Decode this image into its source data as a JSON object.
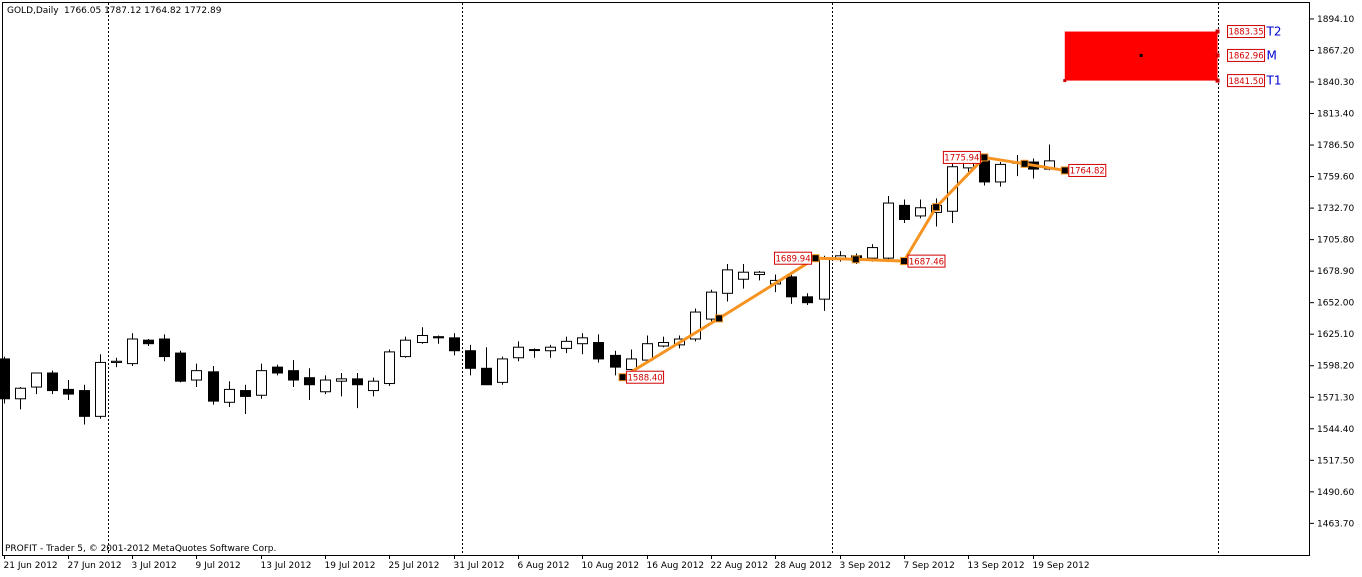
{
  "header": {
    "symbol_timeframe": "GOLD,Daily",
    "ohlc": "1766.05 1787.12 1764.82 1772.89"
  },
  "footer": {
    "copyright": "PROFIT - Trader 5, © 2001-2012 MetaQuotes Software Corp."
  },
  "colors": {
    "candle_outline": "#000000",
    "bull_fill": "#ffffff",
    "bear_fill": "#000000",
    "zigzag": "#f79421",
    "target_box": "#ff0000",
    "point_label": "#d00000",
    "target_text": "#0000d0"
  },
  "chart_data": {
    "type": "candlestick",
    "ylim": [
      1436.7,
      1907.7
    ],
    "y_ticks": [
      "1894.10",
      "1867.20",
      "1840.30",
      "1813.40",
      "1786.50",
      "1759.60",
      "1732.70",
      "1705.80",
      "1678.90",
      "1652.00",
      "1625.10",
      "1598.20",
      "1571.30",
      "1544.40",
      "1517.50",
      "1490.60",
      "1463.70"
    ],
    "x_tick_labels": [
      {
        "index": 0,
        "label": "21 Jun 2012"
      },
      {
        "index": 4,
        "label": "27 Jun 2012"
      },
      {
        "index": 8,
        "label": "3 Jul 2012"
      },
      {
        "index": 12,
        "label": "9 Jul 2012"
      },
      {
        "index": 16,
        "label": "13 Jul 2012"
      },
      {
        "index": 20,
        "label": "19 Jul 2012"
      },
      {
        "index": 24,
        "label": "25 Jul 2012"
      },
      {
        "index": 28,
        "label": "31 Jul 2012"
      },
      {
        "index": 32,
        "label": "6 Aug 2012"
      },
      {
        "index": 36,
        "label": "10 Aug 2012"
      },
      {
        "index": 40,
        "label": "16 Aug 2012"
      },
      {
        "index": 44,
        "label": "22 Aug 2012"
      },
      {
        "index": 48,
        "label": "28 Aug 2012"
      },
      {
        "index": 52,
        "label": "3 Sep 2012"
      },
      {
        "index": 56,
        "label": "7 Sep 2012"
      },
      {
        "index": 60,
        "label": "13 Sep 2012"
      },
      {
        "index": 64,
        "label": "19 Sep 2012"
      }
    ],
    "period_separators": [
      6.5,
      28.5,
      51.5,
      75.5
    ],
    "candles": [
      {
        "o": 1604,
        "h": 1606,
        "l": 1566,
        "c": 1570
      },
      {
        "o": 1570,
        "h": 1580,
        "l": 1561,
        "c": 1579
      },
      {
        "o": 1580,
        "h": 1590,
        "l": 1574,
        "c": 1592
      },
      {
        "o": 1592,
        "h": 1594,
        "l": 1574,
        "c": 1577
      },
      {
        "o": 1578,
        "h": 1586,
        "l": 1569,
        "c": 1574
      },
      {
        "o": 1577,
        "h": 1582,
        "l": 1548,
        "c": 1555
      },
      {
        "o": 1555,
        "h": 1608,
        "l": 1553,
        "c": 1601
      },
      {
        "o": 1601,
        "h": 1605,
        "l": 1597,
        "c": 1602
      },
      {
        "o": 1600,
        "h": 1626,
        "l": 1598,
        "c": 1621
      },
      {
        "o": 1620,
        "h": 1621,
        "l": 1615,
        "c": 1617
      },
      {
        "o": 1621,
        "h": 1625,
        "l": 1602,
        "c": 1606
      },
      {
        "o": 1609,
        "h": 1611,
        "l": 1584,
        "c": 1585
      },
      {
        "o": 1586,
        "h": 1600,
        "l": 1580,
        "c": 1594
      },
      {
        "o": 1593,
        "h": 1598,
        "l": 1565,
        "c": 1568
      },
      {
        "o": 1567,
        "h": 1585,
        "l": 1563,
        "c": 1578
      },
      {
        "o": 1577,
        "h": 1582,
        "l": 1557,
        "c": 1572
      },
      {
        "o": 1573,
        "h": 1600,
        "l": 1570,
        "c": 1594
      },
      {
        "o": 1597,
        "h": 1599,
        "l": 1590,
        "c": 1592
      },
      {
        "o": 1594,
        "h": 1603,
        "l": 1580,
        "c": 1586
      },
      {
        "o": 1588,
        "h": 1596,
        "l": 1569,
        "c": 1582
      },
      {
        "o": 1576,
        "h": 1590,
        "l": 1574,
        "c": 1586
      },
      {
        "o": 1585,
        "h": 1592,
        "l": 1572,
        "c": 1587
      },
      {
        "o": 1587,
        "h": 1592,
        "l": 1562,
        "c": 1582
      },
      {
        "o": 1577,
        "h": 1588,
        "l": 1572,
        "c": 1585
      },
      {
        "o": 1583,
        "h": 1612,
        "l": 1581,
        "c": 1610
      },
      {
        "o": 1606,
        "h": 1623,
        "l": 1605,
        "c": 1620
      },
      {
        "o": 1618,
        "h": 1631,
        "l": 1617,
        "c": 1624
      },
      {
        "o": 1623,
        "h": 1624,
        "l": 1617,
        "c": 1622
      },
      {
        "o": 1622,
        "h": 1626,
        "l": 1607,
        "c": 1611
      },
      {
        "o": 1611,
        "h": 1616,
        "l": 1590,
        "c": 1596
      },
      {
        "o": 1596,
        "h": 1614,
        "l": 1584,
        "c": 1582
      },
      {
        "o": 1584,
        "h": 1606,
        "l": 1582,
        "c": 1604
      },
      {
        "o": 1605,
        "h": 1619,
        "l": 1602,
        "c": 1614
      },
      {
        "o": 1612,
        "h": 1613,
        "l": 1605,
        "c": 1612
      },
      {
        "o": 1611,
        "h": 1616,
        "l": 1605,
        "c": 1614
      },
      {
        "o": 1613,
        "h": 1623,
        "l": 1609,
        "c": 1619
      },
      {
        "o": 1617,
        "h": 1626,
        "l": 1608,
        "c": 1622
      },
      {
        "o": 1618,
        "h": 1625,
        "l": 1601,
        "c": 1604
      },
      {
        "o": 1607,
        "h": 1611,
        "l": 1590,
        "c": 1597
      },
      {
        "o": 1595,
        "h": 1612,
        "l": 1586,
        "c": 1604
      },
      {
        "o": 1603,
        "h": 1624,
        "l": 1601,
        "c": 1617
      },
      {
        "o": 1615,
        "h": 1623,
        "l": 1614,
        "c": 1618
      },
      {
        "o": 1616,
        "h": 1624,
        "l": 1613,
        "c": 1621
      },
      {
        "o": 1621,
        "h": 1647,
        "l": 1619,
        "c": 1644
      },
      {
        "o": 1638,
        "h": 1663,
        "l": 1636,
        "c": 1661
      },
      {
        "o": 1660,
        "h": 1685,
        "l": 1653,
        "c": 1680
      },
      {
        "o": 1672,
        "h": 1685,
        "l": 1664,
        "c": 1678
      },
      {
        "o": 1676,
        "h": 1679,
        "l": 1671,
        "c": 1678
      },
      {
        "o": 1668,
        "h": 1676,
        "l": 1661,
        "c": 1671
      },
      {
        "o": 1674,
        "h": 1676,
        "l": 1651,
        "c": 1657
      },
      {
        "o": 1657,
        "h": 1660,
        "l": 1650,
        "c": 1652
      },
      {
        "o": 1655,
        "h": 1692,
        "l": 1645,
        "c": 1690
      },
      {
        "o": 1690,
        "h": 1696,
        "l": 1687,
        "c": 1692
      },
      {
        "o": 1692,
        "h": 1694,
        "l": 1685,
        "c": 1688
      },
      {
        "o": 1690,
        "h": 1702,
        "l": 1687,
        "c": 1699
      },
      {
        "o": 1690,
        "h": 1743,
        "l": 1689,
        "c": 1737
      },
      {
        "o": 1735,
        "h": 1740,
        "l": 1720,
        "c": 1723
      },
      {
        "o": 1726,
        "h": 1740,
        "l": 1724,
        "c": 1733
      },
      {
        "o": 1729,
        "h": 1741,
        "l": 1717,
        "c": 1735
      },
      {
        "o": 1730,
        "h": 1775,
        "l": 1720,
        "c": 1768
      },
      {
        "o": 1767,
        "h": 1777,
        "l": 1761,
        "c": 1772
      },
      {
        "o": 1773,
        "h": 1774,
        "l": 1752,
        "c": 1755
      },
      {
        "o": 1755,
        "h": 1772,
        "l": 1751,
        "c": 1770
      },
      {
        "o": 1771,
        "h": 1778,
        "l": 1760,
        "c": 1772
      },
      {
        "o": 1772,
        "h": 1775,
        "l": 1758,
        "c": 1766
      },
      {
        "o": 1766,
        "h": 1787,
        "l": 1765,
        "c": 1773
      }
    ],
    "zigzag": [
      {
        "index": 38.5,
        "value": 1588.4,
        "label": "1588.40",
        "label_side": "right"
      },
      {
        "index": 44.5,
        "value": 1638.6
      },
      {
        "index": 50.5,
        "value": 1689.94,
        "label": "1689.94",
        "label_side": "left"
      },
      {
        "index": 53,
        "value": 1689.0
      },
      {
        "index": 56,
        "value": 1687.46,
        "label": "1687.46",
        "label_side": "right"
      },
      {
        "index": 58,
        "value": 1733.5
      },
      {
        "index": 61,
        "value": 1775.94,
        "label": "1775.94",
        "label_side": "left"
      },
      {
        "index": 63.5,
        "value": 1770.5
      },
      {
        "index": 66,
        "value": 1764.82,
        "label": "1764.82",
        "label_side": "right"
      }
    ],
    "target_zone": {
      "from_index": 66,
      "to_index": 75.5,
      "top": 1883.35,
      "bottom": 1841.5,
      "levels": [
        {
          "value": 1883.35,
          "label": "1883.35",
          "tag": "T2"
        },
        {
          "value": 1862.96,
          "label": "1862.96",
          "tag": "M"
        },
        {
          "value": 1841.5,
          "label": "1841.50",
          "tag": "T1"
        }
      ]
    }
  }
}
